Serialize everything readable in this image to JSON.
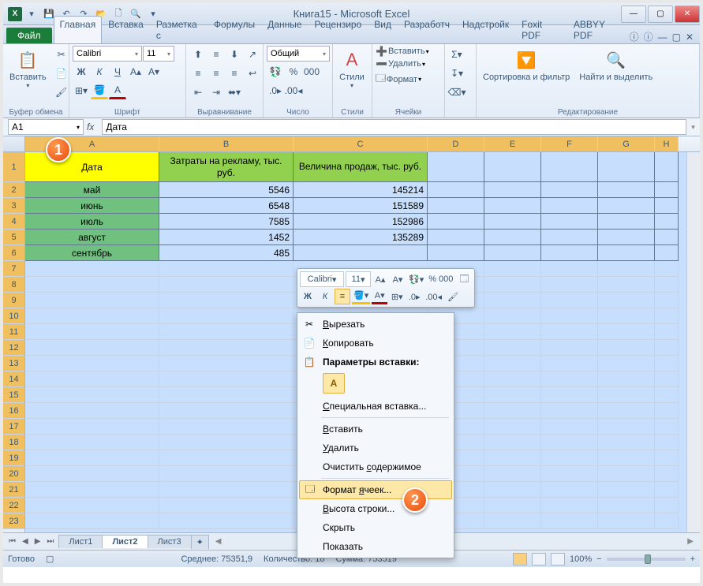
{
  "window": {
    "title": "Книга15 - Microsoft Excel"
  },
  "tabs": {
    "file": "Файл",
    "list": [
      "Главная",
      "Вставка",
      "Разметка с",
      "Формулы",
      "Данные",
      "Рецензиро",
      "Вид",
      "Разработч",
      "Надстройк",
      "Foxit PDF",
      "ABBYY PDF"
    ],
    "active": 0
  },
  "ribbon": {
    "clipboard": {
      "label": "Буфер обмена",
      "paste": "Вставить"
    },
    "font": {
      "label": "Шрифт",
      "face": "Calibri",
      "size": "11"
    },
    "align": {
      "label": "Выравнивание"
    },
    "number": {
      "label": "Число",
      "format": "Общий"
    },
    "styles": {
      "label": "Стили",
      "btn": "Стили"
    },
    "cells": {
      "label": "Ячейки",
      "insert": "Вставить",
      "delete": "Удалить",
      "format": "Формат"
    },
    "editing": {
      "label": "Редактирование",
      "sort": "Сортировка и фильтр",
      "find": "Найти и выделить"
    }
  },
  "namebox": "A1",
  "formula": "Дата",
  "columns": [
    {
      "letter": "A",
      "width": 170
    },
    {
      "letter": "B",
      "width": 170
    },
    {
      "letter": "C",
      "width": 170
    },
    {
      "letter": "D",
      "width": 72
    },
    {
      "letter": "E",
      "width": 72
    },
    {
      "letter": "F",
      "width": 72
    },
    {
      "letter": "G",
      "width": 72
    },
    {
      "letter": "H",
      "width": 30
    }
  ],
  "headerRow": {
    "a": "Дата",
    "b": "Затраты на рекламу, тыс. руб.",
    "c": "Величина продаж, тыс. руб."
  },
  "dataRows": [
    {
      "month": "май",
      "cost": "5546",
      "sales": "145214"
    },
    {
      "month": "июнь",
      "cost": "6548",
      "sales": "151589"
    },
    {
      "month": "июль",
      "cost": "7585",
      "sales": "152986"
    },
    {
      "month": "август",
      "cost": "1452",
      "sales": "135289"
    },
    {
      "month": "сентябрь",
      "cost": "485",
      "sales": ""
    }
  ],
  "rowCount": 23,
  "miniToolbar": {
    "font": "Calibri",
    "size": "11",
    "percent": "% 000"
  },
  "contextMenu": {
    "cut": "Вырезать",
    "copy": "Копировать",
    "pasteOptTitle": "Параметры вставки:",
    "pasteSpecial": "Специальная вставка...",
    "insert": "Вставить",
    "delete": "Удалить",
    "clear": "Очистить содержимое",
    "formatCells": "Формат ячеек...",
    "rowHeight": "Высота строки...",
    "hide": "Скрыть",
    "show": "Показать"
  },
  "sheets": {
    "list": [
      "Лист1",
      "Лист2",
      "Лист3"
    ],
    "active": 1
  },
  "status": {
    "ready": "Готово",
    "avg_label": "Среднее:",
    "avg": "75351,9",
    "count_label": "Количество:",
    "count": "18",
    "sum_label": "Сумма:",
    "sum": "753519",
    "zoom": "100%"
  },
  "colors": {
    "hdr_yellow": "#ffff00",
    "hdr_green": "#92d050",
    "month_green": "#70c080",
    "selection": "#c7dffc",
    "col_sel": "#f0c060"
  }
}
